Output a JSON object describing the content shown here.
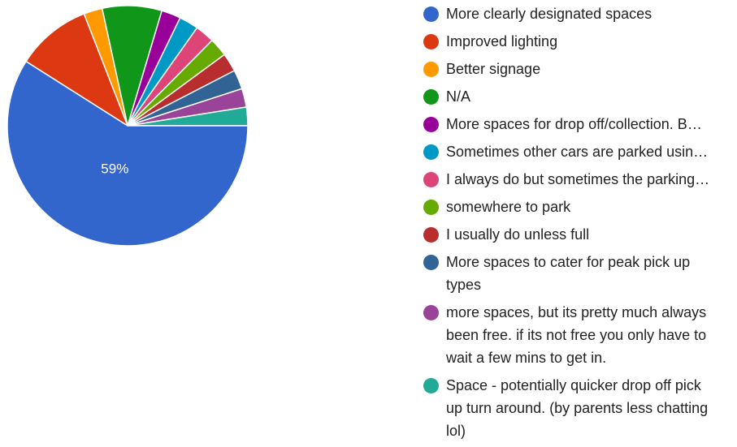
{
  "chart_data": {
    "type": "pie",
    "categories": [
      "Space - potentially quicker drop off pick\nup turn around. (by parents less chatting\nlol)",
      "more spaces, but its pretty much always\nbeen free. if its not free you only have to\nwait a few mins to get in.",
      "More spaces to cater for peak pick up\ntypes",
      "I usually do unless full",
      "somewhere to park",
      "I always do but sometimes the parking…",
      "Sometimes other cars are parked usin…",
      "More spaces for drop off/collection. B…",
      "N/A",
      "Better signage",
      "Improved lighting",
      "More clearly designated spaces"
    ],
    "values": [
      2.5,
      2.5,
      2.6,
      2.5,
      2.5,
      2.6,
      2.6,
      2.6,
      8.0,
      2.5,
      10.1,
      59.0
    ],
    "colors": [
      "#22aa99",
      "#994499",
      "#316395",
      "#b82e2e",
      "#66aa00",
      "#dd4477",
      "#0099c6",
      "#990099",
      "#109618",
      "#ff9900",
      "#dc3912",
      "#3366cc"
    ],
    "slice_labels": [
      "",
      "",
      "",
      "",
      "",
      "",
      "",
      "",
      "",
      "",
      "",
      "59%"
    ],
    "legend_order": [
      11,
      10,
      9,
      8,
      7,
      6,
      5,
      4,
      3,
      2,
      1,
      0
    ],
    "legend_position": "right"
  }
}
